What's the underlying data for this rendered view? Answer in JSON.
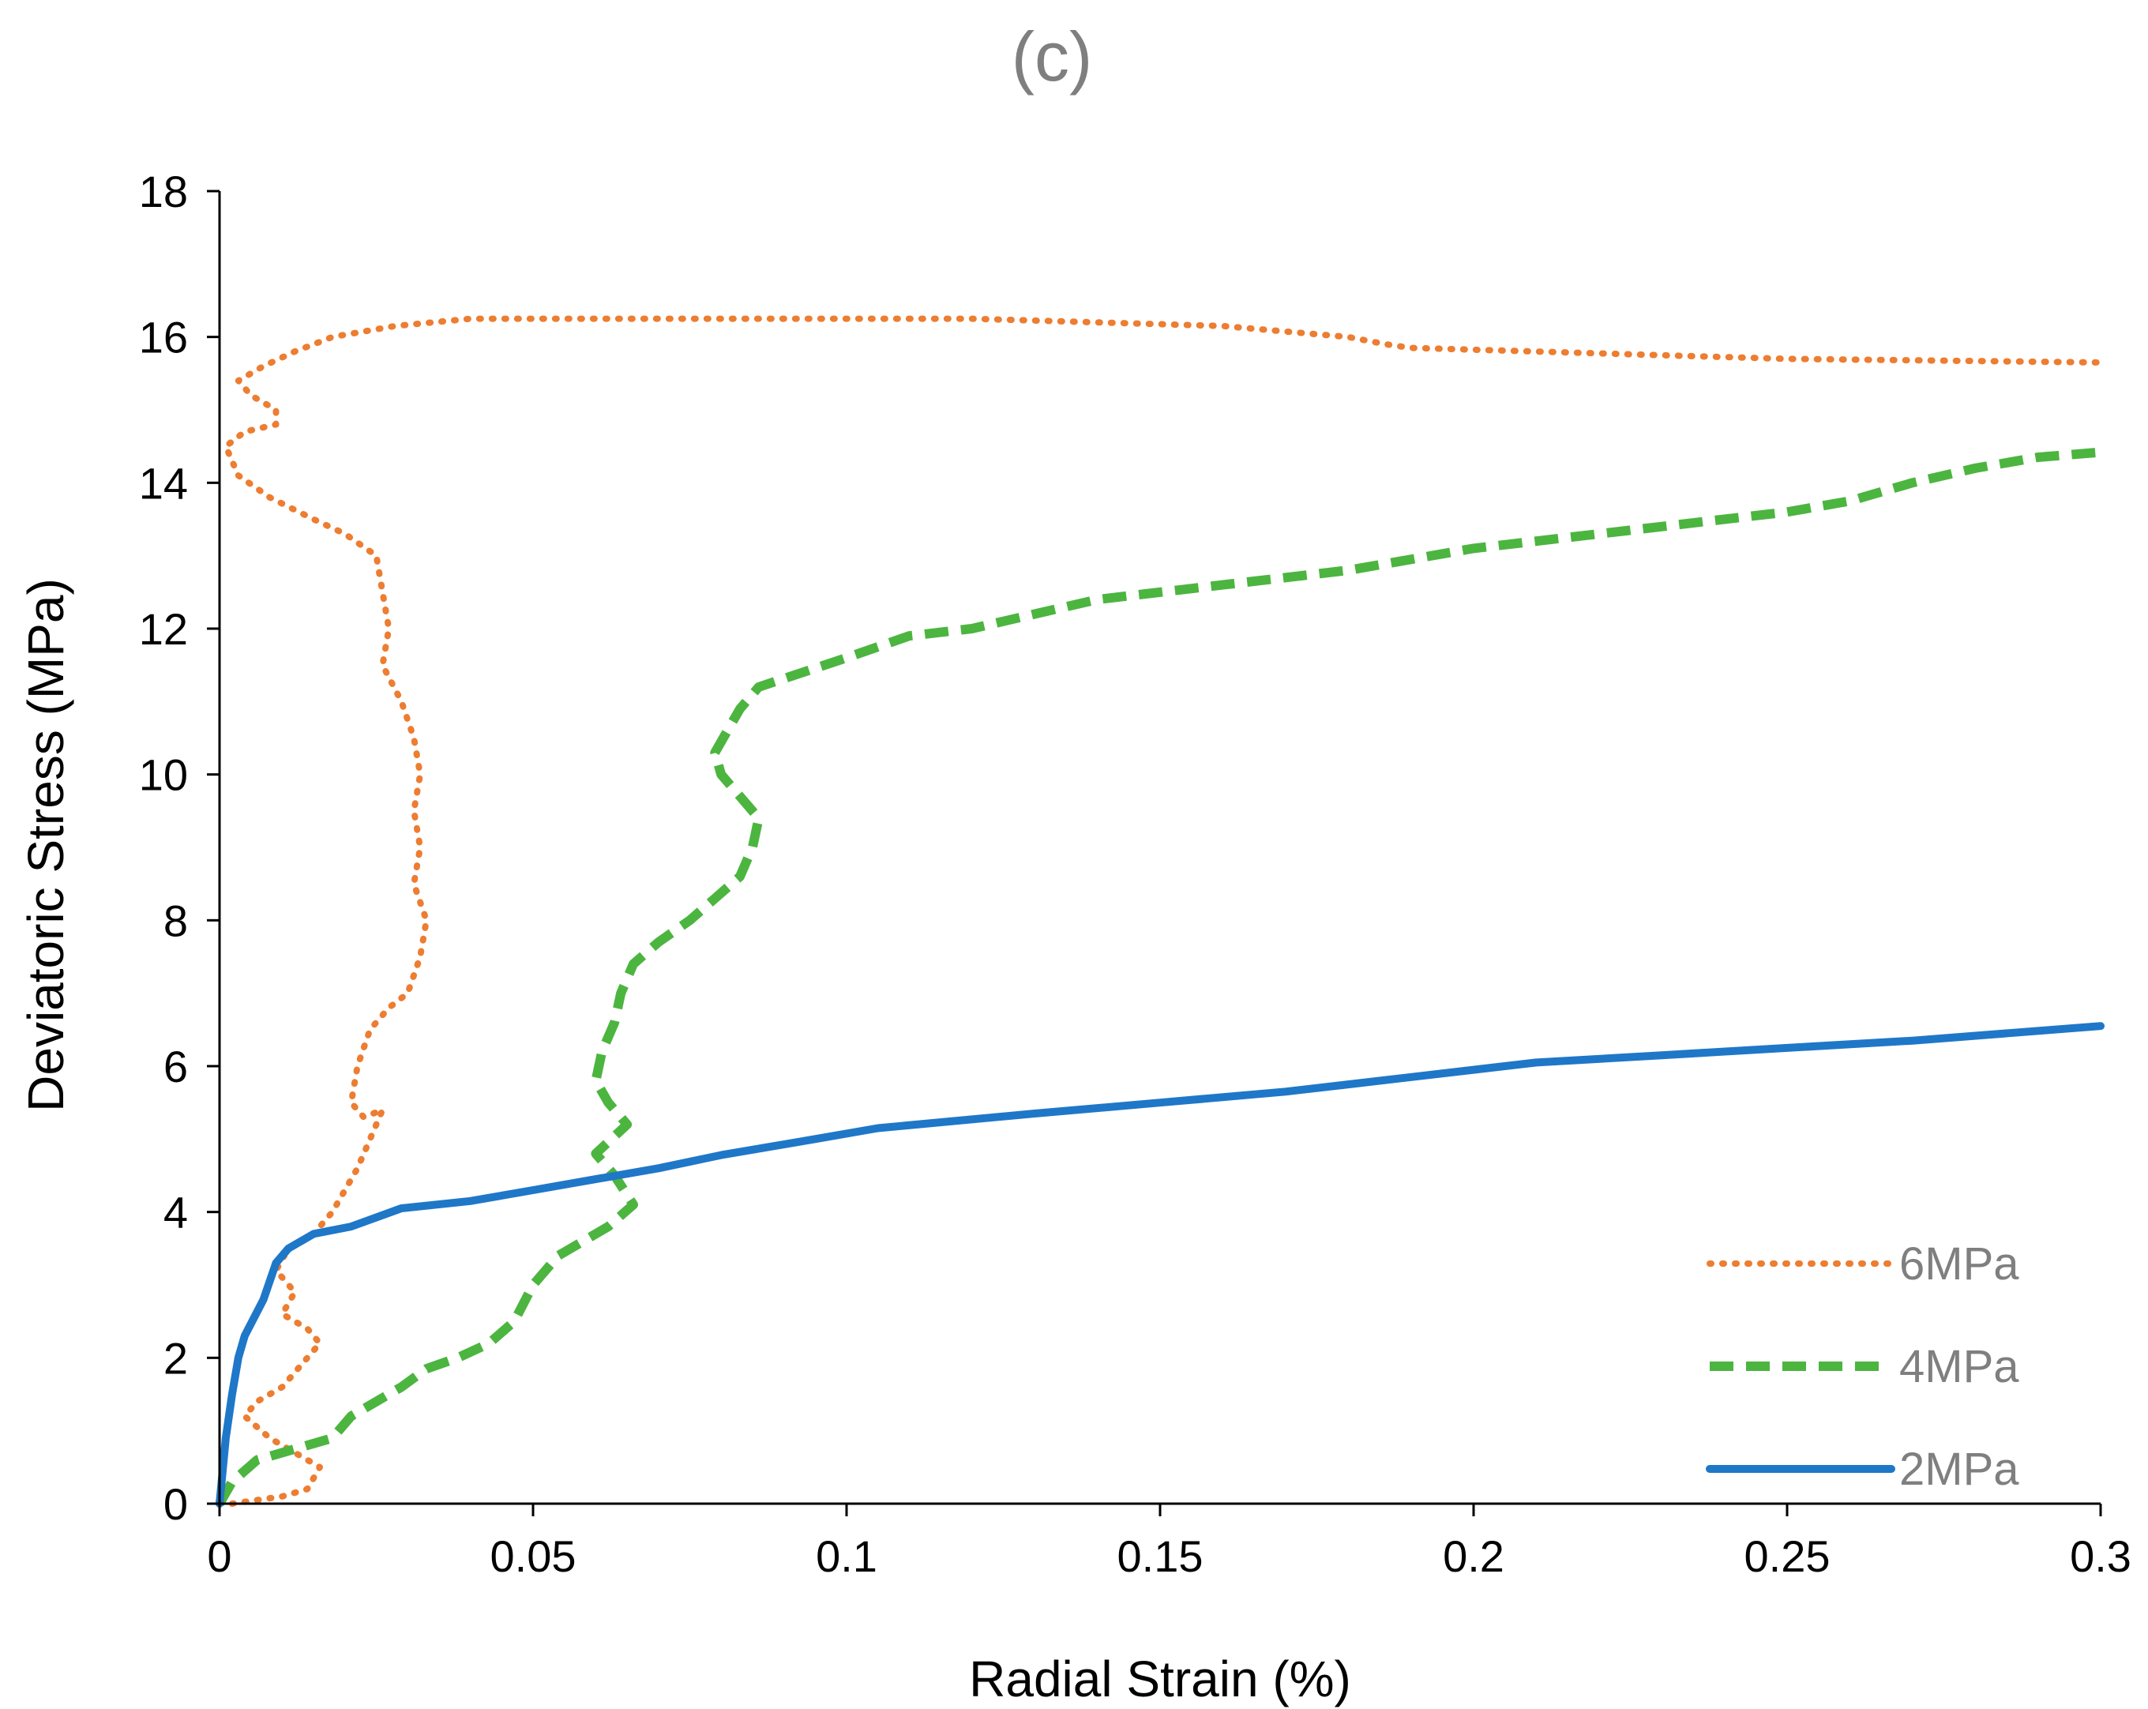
{
  "chart_data": {
    "type": "line",
    "title": "(c)",
    "xlabel": "Radial Strain (%)",
    "ylabel": "Deviatoric Stress (MPa)",
    "xlim": [
      0,
      0.3
    ],
    "ylim": [
      0,
      18
    ],
    "xticks": [
      0,
      0.05,
      0.1,
      0.15,
      0.2,
      0.25,
      0.3
    ],
    "xtick_labels": [
      "0",
      "0.05",
      "0.1",
      "0.15",
      "0.2",
      "0.25",
      "0.3"
    ],
    "yticks": [
      0,
      2,
      4,
      6,
      8,
      10,
      12,
      14,
      16,
      18
    ],
    "ytick_labels": [
      "0",
      "2",
      "4",
      "6",
      "8",
      "10",
      "12",
      "14",
      "16",
      "18"
    ],
    "grid": false,
    "legend_position": "bottom-right",
    "series": [
      {
        "name": "6MPa",
        "color": "#ED7D31",
        "style": "dotted",
        "points": [
          [
            0.002,
            0
          ],
          [
            0.006,
            0.05
          ],
          [
            0.01,
            0.1
          ],
          [
            0.014,
            0.2
          ],
          [
            0.016,
            0.5
          ],
          [
            0.012,
            0.7
          ],
          [
            0.008,
            0.9
          ],
          [
            0.004,
            1.2
          ],
          [
            0.006,
            1.4
          ],
          [
            0.01,
            1.6
          ],
          [
            0.013,
            1.9
          ],
          [
            0.016,
            2.2
          ],
          [
            0.014,
            2.4
          ],
          [
            0.01,
            2.6
          ],
          [
            0.012,
            2.9
          ],
          [
            0.009,
            3.2
          ],
          [
            0.011,
            3.5
          ],
          [
            0.015,
            3.7
          ],
          [
            0.018,
            4.0
          ],
          [
            0.02,
            4.3
          ],
          [
            0.022,
            4.6
          ],
          [
            0.024,
            5.0
          ],
          [
            0.026,
            5.4
          ],
          [
            0.023,
            5.3
          ],
          [
            0.021,
            5.5
          ],
          [
            0.022,
            6.0
          ],
          [
            0.024,
            6.5
          ],
          [
            0.027,
            6.8
          ],
          [
            0.03,
            7.0
          ],
          [
            0.032,
            7.5
          ],
          [
            0.033,
            8.0
          ],
          [
            0.031,
            8.5
          ],
          [
            0.032,
            9.0
          ],
          [
            0.031,
            9.5
          ],
          [
            0.032,
            10.0
          ],
          [
            0.031,
            10.5
          ],
          [
            0.029,
            11.0
          ],
          [
            0.026,
            11.5
          ],
          [
            0.027,
            12.0
          ],
          [
            0.026,
            12.5
          ],
          [
            0.025,
            13.0
          ],
          [
            0.02,
            13.3
          ],
          [
            0.015,
            13.5
          ],
          [
            0.008,
            13.8
          ],
          [
            0.003,
            14.1
          ],
          [
            0.001,
            14.5
          ],
          [
            0.004,
            14.7
          ],
          [
            0.009,
            14.8
          ],
          [
            0.009,
            15.0
          ],
          [
            0.005,
            15.2
          ],
          [
            0.003,
            15.4
          ],
          [
            0.007,
            15.6
          ],
          [
            0.012,
            15.8
          ],
          [
            0.018,
            16.0
          ],
          [
            0.028,
            16.15
          ],
          [
            0.04,
            16.25
          ],
          [
            0.06,
            16.25
          ],
          [
            0.08,
            16.25
          ],
          [
            0.1,
            16.25
          ],
          [
            0.12,
            16.25
          ],
          [
            0.14,
            16.2
          ],
          [
            0.16,
            16.15
          ],
          [
            0.18,
            16.0
          ],
          [
            0.186,
            15.9
          ],
          [
            0.19,
            15.85
          ],
          [
            0.21,
            15.8
          ],
          [
            0.23,
            15.75
          ],
          [
            0.25,
            15.7
          ],
          [
            0.27,
            15.68
          ],
          [
            0.3,
            15.65
          ]
        ]
      },
      {
        "name": "4MPa",
        "color": "#4CB53F",
        "style": "dashed",
        "points": [
          [
            0,
            0
          ],
          [
            0.002,
            0.3
          ],
          [
            0.006,
            0.6
          ],
          [
            0.012,
            0.75
          ],
          [
            0.018,
            0.9
          ],
          [
            0.021,
            1.2
          ],
          [
            0.025,
            1.4
          ],
          [
            0.029,
            1.6
          ],
          [
            0.033,
            1.85
          ],
          [
            0.038,
            2.0
          ],
          [
            0.043,
            2.2
          ],
          [
            0.047,
            2.5
          ],
          [
            0.05,
            3.0
          ],
          [
            0.054,
            3.4
          ],
          [
            0.058,
            3.6
          ],
          [
            0.062,
            3.8
          ],
          [
            0.066,
            4.1
          ],
          [
            0.063,
            4.5
          ],
          [
            0.06,
            4.8
          ],
          [
            0.065,
            5.2
          ],
          [
            0.062,
            5.5
          ],
          [
            0.06,
            5.8
          ],
          [
            0.061,
            6.2
          ],
          [
            0.063,
            6.6
          ],
          [
            0.064,
            7.0
          ],
          [
            0.066,
            7.4
          ],
          [
            0.07,
            7.7
          ],
          [
            0.075,
            8.0
          ],
          [
            0.079,
            8.3
          ],
          [
            0.083,
            8.6
          ],
          [
            0.085,
            9.0
          ],
          [
            0.086,
            9.4
          ],
          [
            0.083,
            9.7
          ],
          [
            0.08,
            10.0
          ],
          [
            0.079,
            10.3
          ],
          [
            0.081,
            10.6
          ],
          [
            0.083,
            10.9
          ],
          [
            0.086,
            11.2
          ],
          [
            0.093,
            11.4
          ],
          [
            0.1,
            11.6
          ],
          [
            0.11,
            11.9
          ],
          [
            0.12,
            12.0
          ],
          [
            0.13,
            12.2
          ],
          [
            0.14,
            12.4
          ],
          [
            0.16,
            12.6
          ],
          [
            0.18,
            12.8
          ],
          [
            0.19,
            12.95
          ],
          [
            0.2,
            13.1
          ],
          [
            0.22,
            13.3
          ],
          [
            0.24,
            13.5
          ],
          [
            0.25,
            13.6
          ],
          [
            0.26,
            13.75
          ],
          [
            0.27,
            14.0
          ],
          [
            0.28,
            14.2
          ],
          [
            0.29,
            14.35
          ],
          [
            0.3,
            14.42
          ]
        ]
      },
      {
        "name": "2MPa",
        "color": "#1F77C8",
        "style": "solid",
        "points": [
          [
            0,
            0
          ],
          [
            0.001,
            0.9
          ],
          [
            0.002,
            1.5
          ],
          [
            0.003,
            2.0
          ],
          [
            0.004,
            2.3
          ],
          [
            0.007,
            2.8
          ],
          [
            0.009,
            3.3
          ],
          [
            0.011,
            3.5
          ],
          [
            0.015,
            3.7
          ],
          [
            0.021,
            3.8
          ],
          [
            0.029,
            4.05
          ],
          [
            0.04,
            4.15
          ],
          [
            0.05,
            4.3
          ],
          [
            0.06,
            4.45
          ],
          [
            0.07,
            4.6
          ],
          [
            0.08,
            4.78
          ],
          [
            0.095,
            5.0
          ],
          [
            0.105,
            5.15
          ],
          [
            0.13,
            5.35
          ],
          [
            0.15,
            5.5
          ],
          [
            0.17,
            5.65
          ],
          [
            0.18,
            5.75
          ],
          [
            0.2,
            5.95
          ],
          [
            0.21,
            6.05
          ],
          [
            0.23,
            6.15
          ],
          [
            0.25,
            6.25
          ],
          [
            0.27,
            6.35
          ],
          [
            0.3,
            6.55
          ]
        ]
      }
    ]
  }
}
